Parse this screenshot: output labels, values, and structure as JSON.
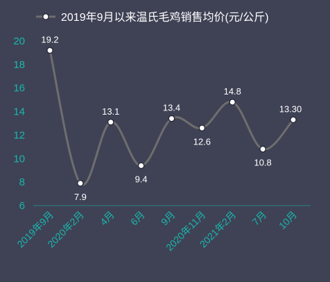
{
  "colors": {
    "background": "#3f4255",
    "line": "#6e6e6e",
    "marker_fill": "#ffffff",
    "axis_text": "#19b6ad",
    "label_text": "#ffffff"
  },
  "chart_data": {
    "type": "line",
    "title": "",
    "xlabel": "",
    "ylabel": "",
    "legend_position": "top",
    "grid": false,
    "smooth": true,
    "categories": [
      "2019年9月",
      "2020年2月",
      "4月",
      "6月",
      "9月",
      "2020年11月",
      "2021年2月",
      "7月",
      "10月"
    ],
    "series": [
      {
        "name": "2019年9月以来温氏毛鸡销售均价(元/公斤)",
        "values": [
          19.2,
          7.9,
          13.1,
          9.4,
          13.4,
          12.6,
          14.8,
          10.8,
          13.3
        ],
        "data_labels": [
          "19.2",
          "7.9",
          "13.1",
          "9.4",
          "13.4",
          "12.6",
          "14.8",
          "10.8",
          "13.30"
        ]
      }
    ],
    "ylim": [
      6,
      20
    ],
    "yticks": [
      "6",
      "8",
      "10",
      "12",
      "14",
      "16",
      "18",
      "20"
    ],
    "label_positions": [
      "above",
      "below",
      "above",
      "below",
      "above",
      "below",
      "above",
      "below",
      "above"
    ]
  }
}
